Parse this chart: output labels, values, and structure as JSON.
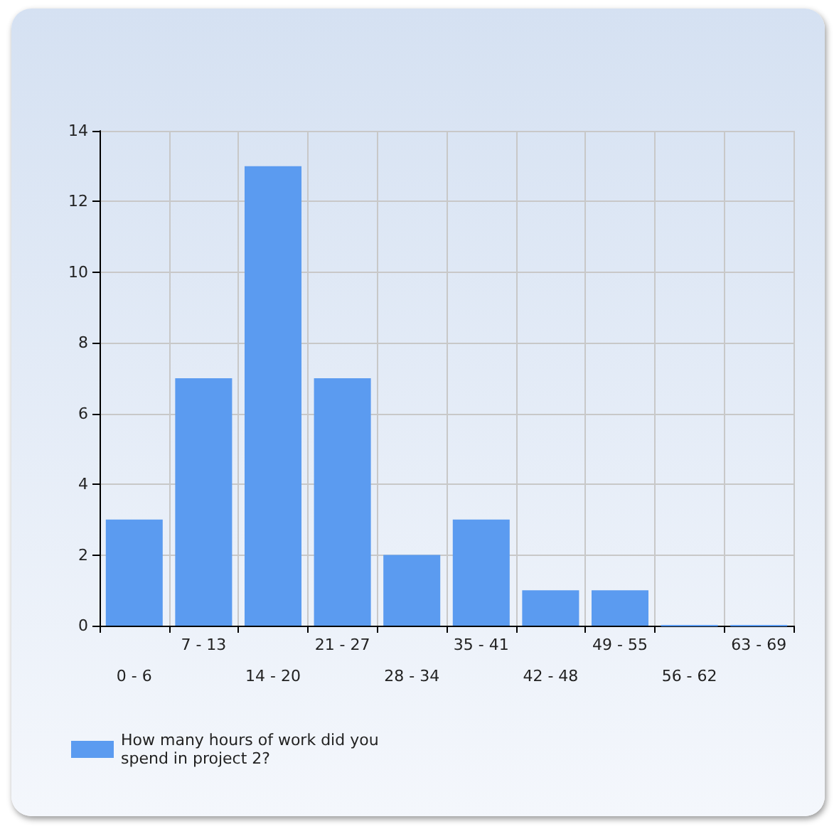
{
  "chart_data": {
    "type": "bar",
    "categories": [
      "0 - 6",
      "7 - 13",
      "14 - 20",
      "21 - 27",
      "28 - 34",
      "35 - 41",
      "42 - 48",
      "49 - 55",
      "56 - 62",
      "63 - 69"
    ],
    "series": [
      {
        "name": "How many hours of work did you spend in project 2?",
        "color": "#5b9bf0",
        "values": [
          3,
          7,
          13,
          7,
          2,
          3,
          1,
          1,
          0,
          0
        ]
      }
    ],
    "ylim": [
      0,
      14
    ],
    "yticks": [
      0,
      2,
      4,
      6,
      8,
      10,
      12,
      14
    ],
    "grid": true,
    "legend": "bottom left"
  }
}
